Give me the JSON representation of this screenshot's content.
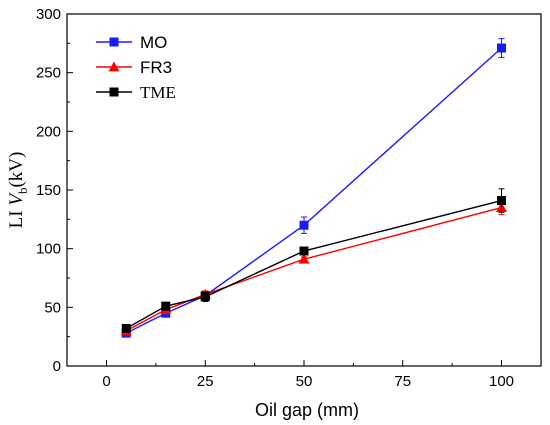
{
  "chart_data": {
    "type": "line",
    "xlabel": "Oil gap (mm)",
    "ylabel": {
      "prefix": "LI ",
      "var": "V",
      "sub": "b",
      "suffix": "(kV)"
    },
    "xlim": [
      -10,
      110
    ],
    "ylim": [
      0,
      300
    ],
    "xticks": [
      "0",
      "25",
      "50",
      "75",
      "100"
    ],
    "yticks": [
      "0",
      "50",
      "100",
      "150",
      "200",
      "250",
      "300"
    ],
    "legend_position": "top-left",
    "grid": false,
    "series": [
      {
        "name": "MO",
        "color": "#1a1aff",
        "marker": "square",
        "x": [
          5,
          15,
          25,
          50,
          100
        ],
        "y": [
          28,
          45,
          60,
          120,
          271
        ],
        "err": [
          2,
          2,
          3,
          7,
          8
        ]
      },
      {
        "name": "FR3",
        "color": "#ff0000",
        "marker": "triangle",
        "x": [
          5,
          15,
          25,
          50,
          100
        ],
        "y": [
          30,
          48,
          61,
          91,
          135
        ],
        "err": [
          2,
          2,
          3,
          2,
          6
        ]
      },
      {
        "name": "TME",
        "color": "#000000",
        "marker": "square",
        "x": [
          5,
          15,
          25,
          50,
          100
        ],
        "y": [
          32,
          51,
          59,
          98,
          141
        ],
        "err": [
          2,
          2,
          4,
          3,
          10
        ]
      }
    ]
  }
}
